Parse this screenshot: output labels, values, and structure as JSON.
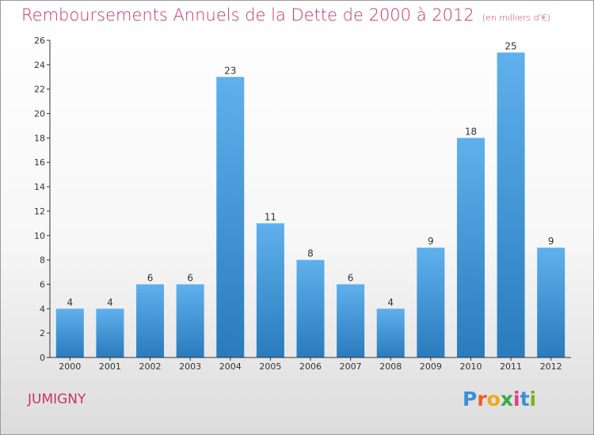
{
  "header": {
    "title": "Remboursements Annuels de la Dette de 2000 à 2012",
    "unit": "(en milliers d'€)"
  },
  "footer": {
    "city": "JUMIGNY",
    "logo_letters": [
      "P",
      "r",
      "o",
      "x",
      "i",
      "t",
      "i"
    ],
    "logo_colors": [
      "#3b8fd9",
      "#e85e2b",
      "#f2a71b",
      "#3aa845",
      "#e83a8a",
      "#3b8fd9",
      "#7ab51d"
    ]
  },
  "colors": {
    "title": "#c8336b",
    "bar_top": "#5fb0ec",
    "bar_bottom": "#2a7bbd",
    "axis": "#333333",
    "grid": "#e6e6e6"
  },
  "chart_data": {
    "type": "bar",
    "categories": [
      "2000",
      "2001",
      "2002",
      "2003",
      "2004",
      "2005",
      "2006",
      "2007",
      "2008",
      "2009",
      "2010",
      "2011",
      "2012"
    ],
    "values": [
      4,
      4,
      6,
      6,
      23,
      11,
      8,
      6,
      4,
      9,
      18,
      25,
      9
    ],
    "ylim": [
      0,
      26
    ],
    "yticks": [
      0,
      2,
      4,
      6,
      8,
      10,
      12,
      14,
      16,
      18,
      20,
      22,
      24,
      26
    ],
    "grid": false
  }
}
